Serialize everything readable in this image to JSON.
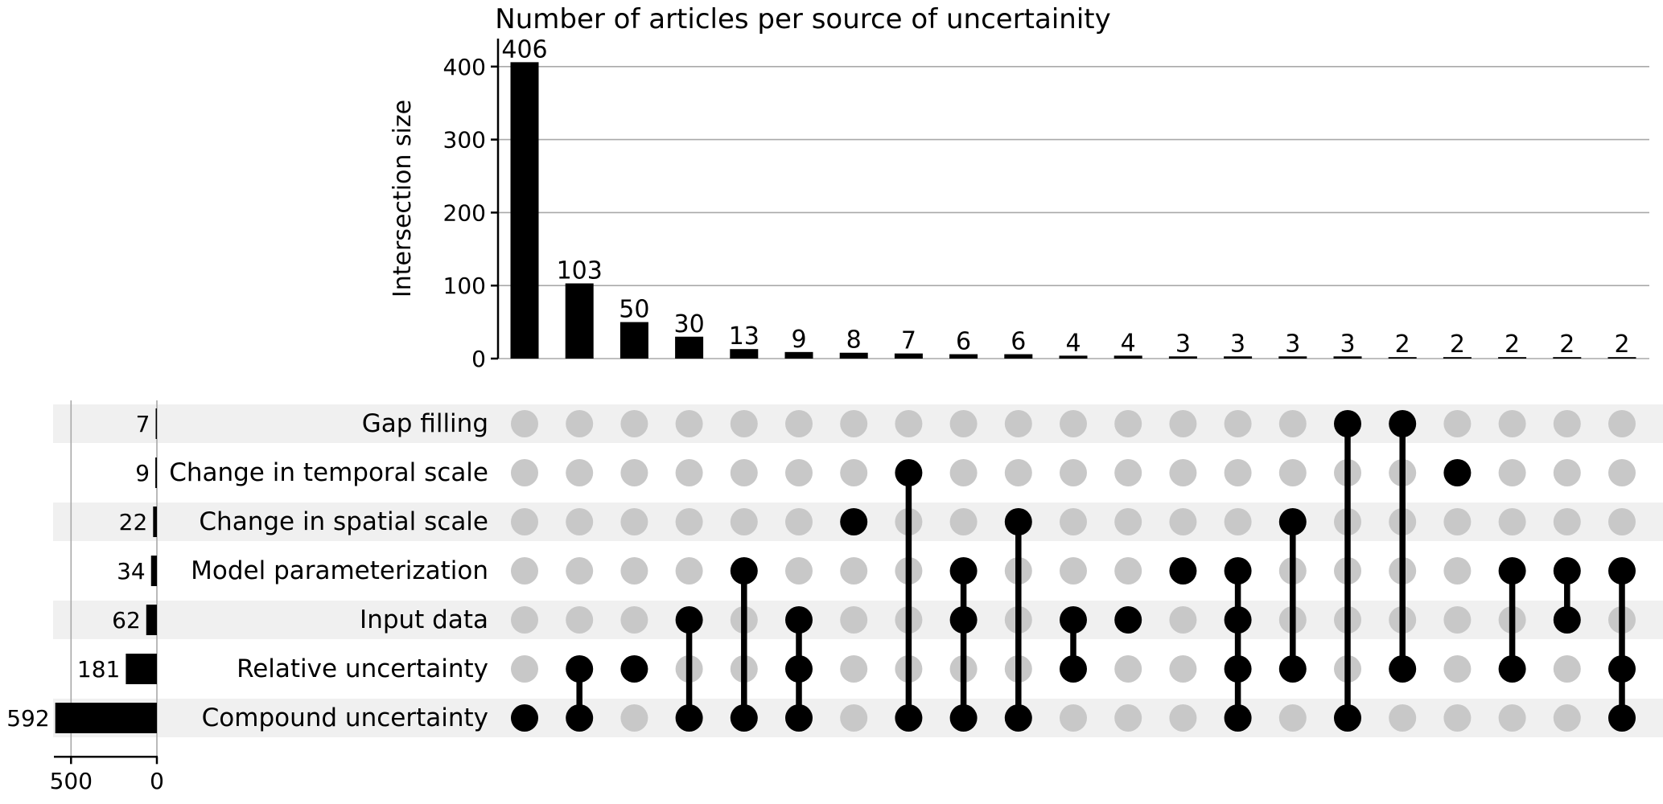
{
  "figure": {
    "title": "Number of articles per source of uncertainity"
  },
  "chart_data": {
    "type": "upset",
    "title": "Number of articles per source of uncertainity",
    "intersection_axis": {
      "label": "Intersection size",
      "ticks": [
        0,
        100,
        200,
        300,
        400
      ],
      "max": 430,
      "grid": true
    },
    "totals_axis": {
      "ticks": [
        500,
        0
      ],
      "max": 600
    },
    "sets": [
      {
        "name": "Gap filling",
        "total": 7
      },
      {
        "name": "Change in temporal scale",
        "total": 9
      },
      {
        "name": "Change in spatial scale",
        "total": 22
      },
      {
        "name": "Model parameterization",
        "total": 34
      },
      {
        "name": "Input data",
        "total": 62
      },
      {
        "name": "Relative uncertainty",
        "total": 181
      },
      {
        "name": "Compound uncertainty",
        "total": 592
      }
    ],
    "intersections": [
      {
        "size": 406,
        "members": [
          6
        ]
      },
      {
        "size": 103,
        "members": [
          5,
          6
        ]
      },
      {
        "size": 50,
        "members": [
          5
        ]
      },
      {
        "size": 30,
        "members": [
          4,
          6
        ]
      },
      {
        "size": 13,
        "members": [
          3,
          6
        ]
      },
      {
        "size": 9,
        "members": [
          4,
          5,
          6
        ]
      },
      {
        "size": 8,
        "members": [
          2
        ]
      },
      {
        "size": 7,
        "members": [
          1,
          6
        ]
      },
      {
        "size": 6,
        "members": [
          3,
          4,
          6
        ]
      },
      {
        "size": 6,
        "members": [
          2,
          6
        ]
      },
      {
        "size": 4,
        "members": [
          4,
          5
        ]
      },
      {
        "size": 4,
        "members": [
          4
        ]
      },
      {
        "size": 3,
        "members": [
          3
        ]
      },
      {
        "size": 3,
        "members": [
          3,
          4,
          5,
          6
        ]
      },
      {
        "size": 3,
        "members": [
          2,
          5
        ]
      },
      {
        "size": 3,
        "members": [
          0,
          6
        ]
      },
      {
        "size": 2,
        "members": [
          0,
          5
        ]
      },
      {
        "size": 2,
        "members": [
          1
        ]
      },
      {
        "size": 2,
        "members": [
          3,
          5
        ]
      },
      {
        "size": 2,
        "members": [
          3,
          4
        ]
      },
      {
        "size": 2,
        "members": [
          3,
          5,
          6
        ]
      }
    ],
    "colors": {
      "bar": "#000000",
      "active_dot": "#000000",
      "inactive_dot": "#c8c8c8",
      "row_stripe": "#f0f0f0",
      "grid_line": "#a9a9a9",
      "axis": "#000000"
    }
  }
}
